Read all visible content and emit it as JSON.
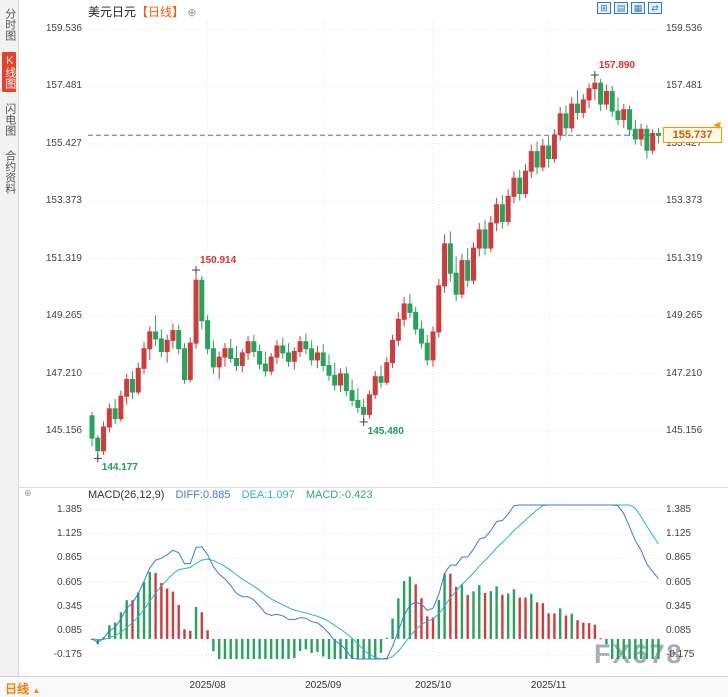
{
  "header": {
    "title": "美元日元",
    "period_tag": "【日线】",
    "add_glyph": "⊕"
  },
  "toolbar_icons": [
    {
      "name": "grid-layout",
      "glyph": "⊞"
    },
    {
      "name": "chart-type",
      "glyph": "▤"
    },
    {
      "name": "indicator-panel",
      "glyph": "▦"
    },
    {
      "name": "compare",
      "glyph": "⇄"
    }
  ],
  "sidebar": {
    "items": [
      {
        "label": "分时图",
        "active": false
      },
      {
        "label": "K线图",
        "active": true
      },
      {
        "label": "闪电图",
        "active": false
      },
      {
        "label": "合约资料",
        "active": false
      }
    ]
  },
  "price_tag": "155.737",
  "icons": {
    "price_arrow": "▲"
  },
  "macd_header": {
    "toggle_glyph": "⊕",
    "name": "MACD(26,12,9)",
    "diff": "DIFF:0.885",
    "dea": "DEA:1.097",
    "macd": "MACD:-0.423"
  },
  "bottom": {
    "period": "日线",
    "arrow_glyph": "▲"
  },
  "watermark": "FX678",
  "colors": {
    "up": "#d13b3b",
    "down": "#27a35d",
    "diff_line": "#3a7bd5",
    "dea_line": "#2ab5c8",
    "dashed_line": "#3a7bd5",
    "grid": "#e6e6e6",
    "annotation_high": "#e0312e",
    "annotation_low": "#1e9e5a",
    "accent": "#ff5a00",
    "tag_border": "#f59a00"
  },
  "chart_data": {
    "type": "candlestick",
    "title": "美元日元 日线 (USD/JPY Daily) with MACD(26,12,9)",
    "price_ticks": [
      159.536,
      157.481,
      155.427,
      153.373,
      151.319,
      149.265,
      147.21,
      145.156
    ],
    "macd_ticks": [
      1.385,
      1.125,
      0.865,
      0.605,
      0.345,
      0.085,
      -0.175
    ],
    "months": [
      {
        "label": "2025/08",
        "bar": 20
      },
      {
        "label": "2025/09",
        "bar": 40
      },
      {
        "label": "2025/10",
        "bar": 59
      },
      {
        "label": "2025/11",
        "bar": 79
      }
    ],
    "annotations": [
      {
        "text": "157.890",
        "bar": 87,
        "side": "high"
      },
      {
        "text": "150.914",
        "bar": 18,
        "side": "high"
      },
      {
        "text": "145.480",
        "bar": 47,
        "side": "low"
      },
      {
        "text": "144.177",
        "bar": 1,
        "side": "low"
      }
    ],
    "last_close": 155.737,
    "ohlc_format": [
      "open",
      "high",
      "low",
      "close"
    ],
    "candles": [
      [
        145.7,
        145.85,
        144.6,
        144.9
      ],
      [
        144.9,
        145.0,
        144.177,
        144.45
      ],
      [
        144.45,
        145.5,
        144.3,
        145.3
      ],
      [
        145.3,
        146.15,
        145.1,
        145.95
      ],
      [
        145.95,
        146.3,
        145.4,
        145.6
      ],
      [
        145.6,
        146.6,
        145.5,
        146.4
      ],
      [
        146.4,
        147.2,
        146.1,
        147.0
      ],
      [
        147.0,
        147.3,
        146.3,
        146.55
      ],
      [
        146.55,
        147.6,
        146.45,
        147.4
      ],
      [
        147.4,
        148.35,
        147.2,
        148.1
      ],
      [
        148.1,
        148.9,
        147.7,
        148.7
      ],
      [
        148.7,
        149.3,
        148.2,
        148.45
      ],
      [
        148.45,
        148.8,
        147.8,
        148.0
      ],
      [
        148.0,
        148.6,
        147.6,
        148.4
      ],
      [
        148.4,
        149.0,
        148.1,
        148.75
      ],
      [
        148.75,
        148.95,
        147.9,
        148.1
      ],
      [
        148.1,
        148.3,
        146.85,
        147.0
      ],
      [
        147.0,
        148.5,
        146.9,
        148.3
      ],
      [
        148.3,
        150.914,
        148.1,
        150.55
      ],
      [
        150.55,
        150.7,
        148.8,
        149.1
      ],
      [
        149.1,
        149.3,
        147.9,
        148.1
      ],
      [
        148.1,
        148.4,
        147.2,
        147.45
      ],
      [
        147.45,
        148.0,
        147.0,
        147.8
      ],
      [
        147.8,
        148.3,
        147.45,
        148.1
      ],
      [
        148.1,
        148.45,
        147.6,
        147.75
      ],
      [
        147.75,
        148.2,
        147.3,
        147.5
      ],
      [
        147.5,
        148.1,
        147.25,
        147.95
      ],
      [
        147.95,
        148.55,
        147.7,
        148.35
      ],
      [
        148.35,
        148.6,
        147.8,
        148.0
      ],
      [
        148.0,
        148.25,
        147.35,
        147.55
      ],
      [
        147.55,
        148.0,
        147.1,
        147.3
      ],
      [
        147.3,
        147.95,
        147.15,
        147.8
      ],
      [
        147.8,
        148.4,
        147.55,
        148.2
      ],
      [
        148.2,
        148.5,
        147.75,
        147.95
      ],
      [
        147.95,
        148.3,
        147.45,
        147.65
      ],
      [
        147.65,
        148.15,
        147.35,
        148.0
      ],
      [
        148.0,
        148.55,
        147.8,
        148.35
      ],
      [
        148.35,
        148.65,
        147.9,
        148.1
      ],
      [
        148.1,
        148.4,
        147.5,
        147.7
      ],
      [
        147.7,
        148.2,
        147.4,
        147.95
      ],
      [
        147.95,
        148.25,
        147.3,
        147.5
      ],
      [
        147.5,
        147.9,
        146.95,
        147.15
      ],
      [
        147.15,
        147.6,
        146.6,
        146.8
      ],
      [
        146.8,
        147.4,
        146.55,
        147.2
      ],
      [
        147.2,
        147.45,
        146.4,
        146.6
      ],
      [
        146.6,
        147.0,
        146.05,
        146.25
      ],
      [
        146.25,
        146.7,
        145.8,
        146.0
      ],
      [
        146.0,
        146.3,
        145.48,
        145.75
      ],
      [
        145.75,
        146.6,
        145.6,
        146.45
      ],
      [
        146.45,
        147.3,
        146.3,
        147.1
      ],
      [
        147.1,
        147.5,
        146.7,
        146.9
      ],
      [
        146.9,
        147.8,
        146.8,
        147.6
      ],
      [
        147.6,
        148.6,
        147.4,
        148.4
      ],
      [
        148.4,
        149.4,
        148.2,
        149.15
      ],
      [
        149.15,
        149.95,
        148.9,
        149.7
      ],
      [
        149.7,
        150.05,
        149.2,
        149.4
      ],
      [
        149.4,
        149.6,
        148.6,
        148.8
      ],
      [
        148.8,
        149.1,
        148.1,
        148.3
      ],
      [
        148.3,
        148.6,
        147.5,
        147.7
      ],
      [
        147.7,
        148.9,
        147.45,
        148.7
      ],
      [
        148.7,
        150.6,
        148.5,
        150.35
      ],
      [
        150.35,
        152.2,
        150.1,
        151.85
      ],
      [
        151.85,
        152.3,
        150.5,
        150.8
      ],
      [
        150.8,
        151.4,
        149.8,
        150.05
      ],
      [
        150.05,
        151.5,
        149.9,
        151.25
      ],
      [
        151.25,
        151.7,
        150.3,
        150.55
      ],
      [
        150.55,
        151.9,
        150.4,
        151.7
      ],
      [
        151.7,
        152.6,
        151.4,
        152.35
      ],
      [
        152.35,
        152.7,
        151.45,
        151.7
      ],
      [
        151.7,
        152.85,
        151.55,
        152.6
      ],
      [
        152.6,
        153.5,
        152.3,
        153.25
      ],
      [
        153.25,
        153.6,
        152.4,
        152.65
      ],
      [
        152.65,
        153.8,
        152.5,
        153.55
      ],
      [
        153.55,
        154.45,
        153.3,
        154.2
      ],
      [
        154.2,
        154.5,
        153.4,
        153.65
      ],
      [
        153.65,
        154.7,
        153.5,
        154.45
      ],
      [
        154.45,
        155.4,
        154.2,
        155.15
      ],
      [
        155.15,
        155.5,
        154.35,
        154.6
      ],
      [
        154.6,
        155.6,
        154.45,
        155.35
      ],
      [
        155.35,
        155.7,
        154.6,
        154.9
      ],
      [
        154.9,
        155.95,
        154.75,
        155.75
      ],
      [
        155.75,
        156.75,
        155.55,
        156.5
      ],
      [
        156.5,
        156.8,
        155.7,
        156.0
      ],
      [
        156.0,
        157.1,
        155.85,
        156.85
      ],
      [
        156.85,
        157.35,
        156.3,
        156.55
      ],
      [
        156.55,
        157.2,
        156.35,
        157.0
      ],
      [
        157.0,
        157.6,
        156.7,
        157.4
      ],
      [
        157.4,
        157.89,
        157.0,
        157.6
      ],
      [
        157.6,
        157.75,
        156.6,
        156.85
      ],
      [
        156.85,
        157.55,
        156.65,
        157.3
      ],
      [
        157.3,
        157.5,
        156.4,
        156.6
      ],
      [
        156.6,
        157.1,
        156.1,
        156.3
      ],
      [
        156.3,
        156.85,
        156.0,
        156.65
      ],
      [
        156.65,
        156.8,
        155.7,
        155.95
      ],
      [
        155.95,
        156.3,
        155.4,
        155.6
      ],
      [
        155.6,
        156.15,
        155.35,
        155.95
      ],
      [
        155.95,
        156.1,
        154.9,
        155.2
      ],
      [
        155.2,
        155.95,
        155.05,
        155.8
      ],
      [
        155.8,
        156.0,
        155.45,
        155.737
      ]
    ],
    "macd": {
      "params": [
        26,
        12,
        9
      ],
      "diff": 0.885,
      "dea": 1.097,
      "macd": -0.423
    }
  }
}
